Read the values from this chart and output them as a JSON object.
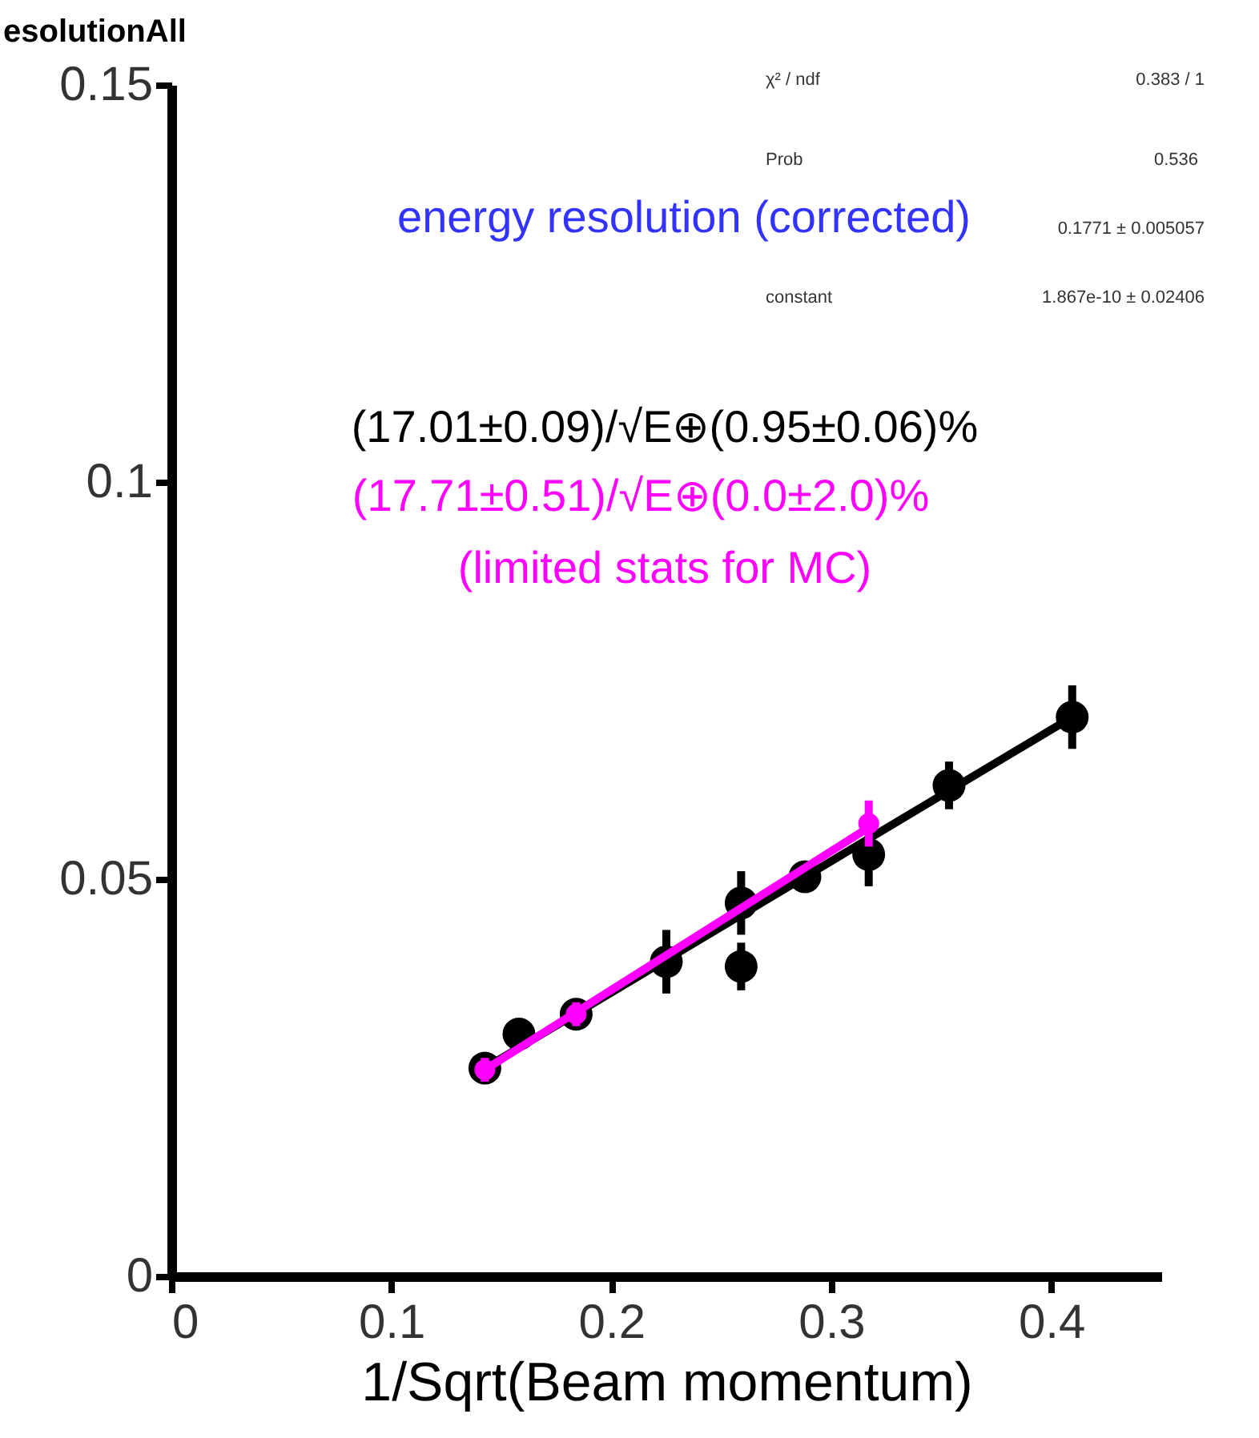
{
  "chart_data": {
    "type": "scatter",
    "title": "esolutionAll",
    "xlabel": "1/Sqrt(Beam momentum)",
    "xlim": [
      0,
      0.45
    ],
    "xticks": [
      0,
      0.1,
      0.2,
      0.3,
      0.4
    ],
    "ylim": [
      0,
      0.15
    ],
    "yticks": [
      0,
      0.05,
      0.1,
      0.15
    ],
    "grid": false,
    "marker": "circle",
    "series": [
      {
        "color": "#000000",
        "x": [
          0.1425,
          0.158,
          0.184,
          0.225,
          0.259,
          0.259,
          0.288,
          0.317,
          0.3535,
          0.4095
        ],
        "values": [
          0.0262,
          0.0305,
          0.033,
          0.0396,
          0.047,
          0.039,
          0.0503,
          0.0531,
          0.0618,
          0.0704
        ],
        "errors": [
          0.002,
          0.002,
          0.002,
          0.004,
          0.004,
          0.003,
          0.002,
          0.004,
          0.003,
          0.004
        ]
      },
      {
        "type": "line",
        "marker": "none",
        "color": "#000000",
        "x": [
          0.1425,
          0.4095
        ],
        "values": [
          0.0262,
          0.0704
        ]
      },
      {
        "color": "#ff00ff",
        "x": [
          0.1425,
          0.184,
          0.317
        ],
        "values": [
          0.026,
          0.033,
          0.057
        ],
        "errors": [
          0.0015,
          0.0015,
          0.0029
        ]
      },
      {
        "type": "line",
        "marker": "none",
        "color": "#ff00ff",
        "x": [
          0.1425,
          0.317
        ],
        "values": [
          0.026,
          0.0565
        ]
      }
    ],
    "annotations": [
      "χ² / ndf",
      "0.383 / 1",
      "Prob",
      "0.536",
      "0.1771 ± 0.005057",
      "constant",
      "1.867e-10 ± 0.02406",
      "energy resolution (corrected)",
      "(17.01±0.09)/√E⊕(0.95±0.06)%",
      "(17.71±0.51)/√E⊕(0.0±2.0)%",
      "(limited stats for MC)"
    ]
  }
}
